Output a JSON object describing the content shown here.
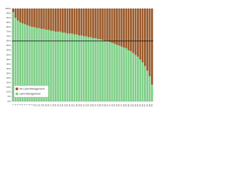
{
  "chart_data": {
    "type": "stacked_bar",
    "categories": [
      "1",
      "2",
      "3",
      "4",
      "5",
      "6",
      "7",
      "8",
      "9",
      "10",
      "11",
      "12",
      "13",
      "14",
      "15",
      "16",
      "17",
      "18",
      "19",
      "20",
      "21",
      "22",
      "23",
      "24",
      "25",
      "26",
      "27",
      "28",
      "29",
      "30",
      "31",
      "32",
      "33",
      "34",
      "35",
      "36",
      "37",
      "38",
      "39",
      "40",
      "41",
      "42",
      "43",
      "44",
      "45",
      "46",
      "47",
      "48",
      "49",
      "50",
      "51",
      "52",
      "53",
      "54",
      "55",
      "56",
      "57",
      "58",
      "59",
      "60"
    ],
    "series": [
      {
        "name": "Lipid Management",
        "color": "#7fcf88",
        "values": [
          96,
          90,
          87,
          85,
          84,
          83,
          82,
          81,
          80,
          80,
          79,
          79,
          78,
          78,
          77,
          77,
          76,
          76,
          75,
          75,
          75,
          74,
          74,
          73,
          73,
          73,
          72,
          72,
          71,
          71,
          70,
          70,
          69,
          69,
          68,
          68,
          67,
          67,
          66,
          65,
          65,
          64,
          63,
          62,
          61,
          60,
          59,
          58,
          57,
          55,
          54,
          52,
          50,
          48,
          45,
          42,
          38,
          33,
          27,
          18
        ]
      },
      {
        "name": "No Lipid Management",
        "color": "#9a5b2c",
        "values": [
          4,
          10,
          13,
          15,
          16,
          17,
          18,
          19,
          20,
          20,
          21,
          21,
          22,
          22,
          23,
          23,
          24,
          24,
          25,
          25,
          25,
          26,
          26,
          27,
          27,
          27,
          28,
          28,
          29,
          29,
          30,
          30,
          31,
          31,
          32,
          32,
          33,
          33,
          34,
          35,
          35,
          36,
          37,
          38,
          39,
          40,
          41,
          42,
          43,
          45,
          46,
          48,
          50,
          52,
          55,
          58,
          62,
          67,
          73,
          82
        ]
      }
    ],
    "ylim": [
      0,
      100
    ],
    "yticks": [
      {
        "value": 0,
        "label": "0%"
      },
      {
        "value": 5,
        "label": "5%"
      },
      {
        "value": 10,
        "label": "10%"
      },
      {
        "value": 15,
        "label": "15%"
      },
      {
        "value": 20,
        "label": "20%"
      },
      {
        "value": 25,
        "label": "25%"
      },
      {
        "value": 30,
        "label": "30%"
      },
      {
        "value": 35,
        "label": "35%"
      },
      {
        "value": 40,
        "label": "40%"
      },
      {
        "value": 45,
        "label": "45%"
      },
      {
        "value": 50,
        "label": "50%"
      },
      {
        "value": 55,
        "label": "55%"
      },
      {
        "value": 60,
        "label": "60%"
      },
      {
        "value": 65,
        "label": "65%"
      },
      {
        "value": 70,
        "label": "70%"
      },
      {
        "value": 75,
        "label": "75%"
      },
      {
        "value": 80,
        "label": "80%"
      },
      {
        "value": 85,
        "label": "85%"
      },
      {
        "value": 90,
        "label": "90%"
      },
      {
        "value": 95,
        "label": "95%"
      },
      {
        "value": 100,
        "label": "100%"
      }
    ],
    "reference_line": {
      "value": 65,
      "color": "#000000"
    },
    "legend": "lower-left"
  }
}
